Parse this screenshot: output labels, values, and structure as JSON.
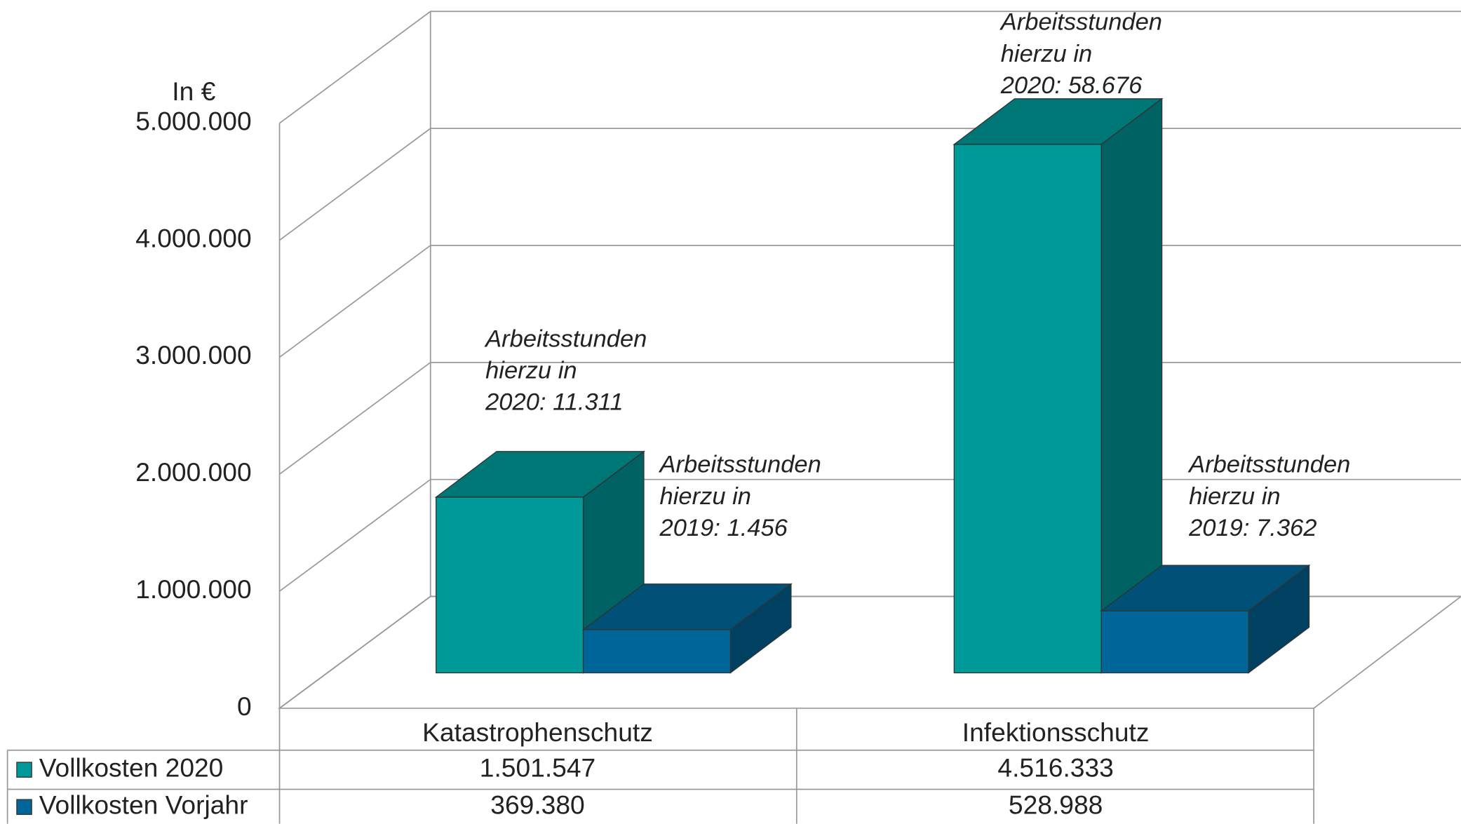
{
  "chart_data": {
    "type": "bar3d",
    "y_label": "In €",
    "categories": [
      "Katastrophenschutz",
      "Infektionsschutz"
    ],
    "series": [
      {
        "name": "Vollkosten 2020",
        "color": "#009999",
        "values": [
          1501547,
          4516333
        ],
        "value_labels": [
          "1.501.547",
          "4.516.333"
        ]
      },
      {
        "name": "Vollkosten Vorjahr",
        "color": "#006699",
        "values": [
          369380,
          528988
        ],
        "value_labels": [
          "369.380",
          "528.988"
        ]
      }
    ],
    "ylim": [
      0,
      5000000
    ],
    "yticks": [
      0,
      {
        "value": 1000000,
        "label": "1.000.000"
      },
      {
        "value": 2000000,
        "label": "2.000.000"
      },
      {
        "value": 3000000,
        "label": "3.000.000"
      },
      {
        "value": 4000000,
        "label": "4.000.000"
      },
      {
        "value": 5000000,
        "label": "5.000.000"
      }
    ],
    "grid": true,
    "annotations": [
      {
        "lines": [
          "Arbeitsstunden",
          "hierzu in",
          "2020: 11.311"
        ]
      },
      {
        "lines": [
          "Arbeitsstunden",
          "hierzu in",
          "2019: 1.456"
        ]
      },
      {
        "lines": [
          "Arbeitsstunden",
          "hierzu in",
          "2020: 58.676"
        ]
      },
      {
        "lines": [
          "Arbeitsstunden",
          "hierzu in",
          "2019: 7.362"
        ]
      }
    ]
  }
}
